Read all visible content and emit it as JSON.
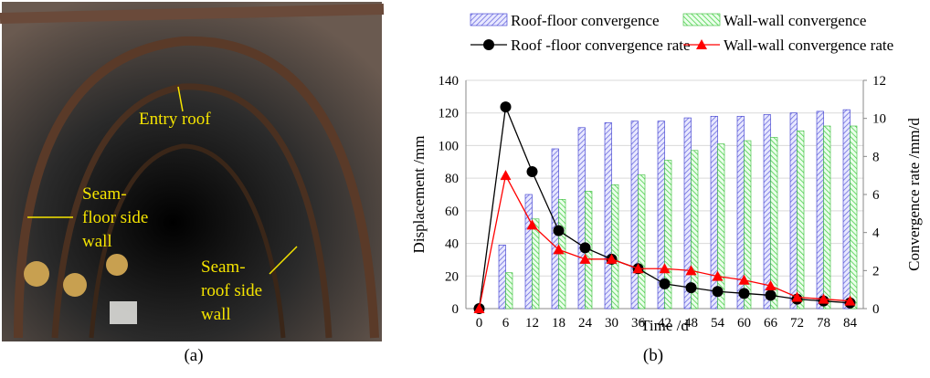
{
  "photo": {
    "labels": [
      {
        "lines": [
          "Entry roof"
        ]
      },
      {
        "lines": [
          "Seam-",
          "floor side",
          "wall"
        ]
      },
      {
        "lines": [
          "Seam-",
          "roof side",
          "wall"
        ]
      }
    ]
  },
  "captions": [
    "(a)",
    "(b)"
  ],
  "chart_data": {
    "type": "bar",
    "x_label": "Time /d",
    "y_label": "Displacement /mm",
    "y2_label": "Convergence rate /mm/d",
    "categories": [
      0,
      6,
      12,
      18,
      24,
      30,
      36,
      42,
      48,
      54,
      60,
      66,
      72,
      78,
      84
    ],
    "series": [
      {
        "name": "Roof-floor convergence",
        "type": "bar",
        "color": "#3333cc",
        "values": [
          0,
          39,
          70,
          98,
          111,
          114,
          115,
          115,
          117,
          118,
          118,
          119,
          120,
          121,
          122
        ]
      },
      {
        "name": "Wall-wall convergence",
        "type": "bar",
        "color": "#33bb33",
        "values": [
          0,
          22,
          55,
          67,
          72,
          76,
          82,
          91,
          97,
          101,
          103,
          105,
          109,
          112,
          112
        ]
      },
      {
        "name": "Roof -floor convergence rate",
        "type": "line",
        "axis": "y2",
        "color": "#000000",
        "marker": "circle",
        "values": [
          0,
          10.6,
          7.2,
          4.1,
          3.2,
          2.6,
          2.1,
          1.3,
          1.1,
          0.9,
          0.8,
          0.7,
          0.5,
          0.4,
          0.3
        ]
      },
      {
        "name": "Wall-wall convergence rate",
        "type": "line",
        "axis": "y2",
        "color": "#ff0000",
        "marker": "triangle",
        "values": [
          0,
          7.0,
          4.4,
          3.1,
          2.6,
          2.6,
          2.1,
          2.1,
          2.0,
          1.7,
          1.5,
          1.2,
          0.6,
          0.5,
          0.4
        ]
      }
    ],
    "ylim": [
      0,
      140
    ],
    "yticks": [
      0,
      20,
      40,
      60,
      80,
      100,
      120,
      140
    ],
    "y2lim": [
      0,
      12
    ],
    "y2ticks": [
      0,
      2,
      4,
      6,
      8,
      10,
      12
    ],
    "grid": true,
    "legend": "top"
  }
}
